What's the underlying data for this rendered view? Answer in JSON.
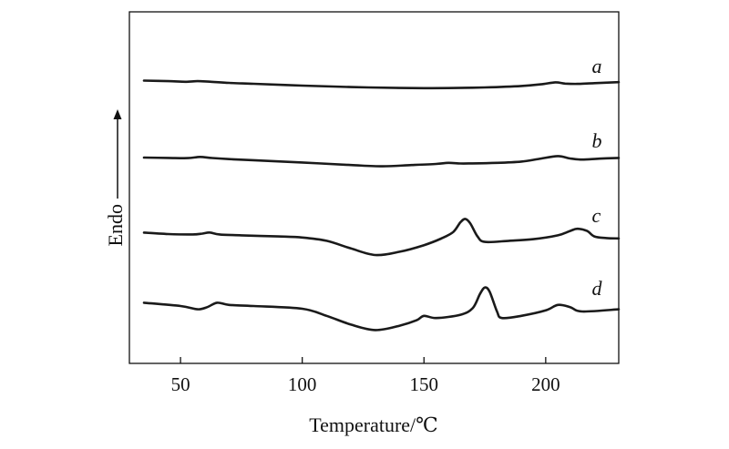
{
  "chart_data": {
    "type": "line",
    "title": "",
    "xlabel": "Temperature/℃",
    "ylabel": "Endo",
    "xlim": [
      29,
      230
    ],
    "x_ticks": [
      50,
      100,
      150,
      200
    ],
    "x_tick_labels": [
      "50",
      "100",
      "150",
      "200"
    ],
    "y_ticks_shown": false,
    "grid": false,
    "legend": "none",
    "series": [
      {
        "name": "a",
        "label_at_x": 204,
        "x": [
          35,
          45,
          52,
          57,
          62,
          70,
          80,
          100,
          120,
          140,
          150,
          160,
          175,
          190,
          198,
          204,
          208,
          213,
          220,
          230
        ],
        "y": [
          0.79,
          0.74,
          0.68,
          0.74,
          0.69,
          0.58,
          0.5,
          0.33,
          0.2,
          0.12,
          0.1,
          0.11,
          0.17,
          0.3,
          0.45,
          0.63,
          0.52,
          0.49,
          0.56,
          0.65
        ]
      },
      {
        "name": "b",
        "label_at_x": 204,
        "x": [
          35,
          45,
          53,
          58,
          63,
          70,
          80,
          100,
          120,
          133,
          145,
          155,
          160,
          165,
          170,
          180,
          190,
          197,
          205,
          210,
          215,
          222,
          230
        ],
        "y": [
          0.58,
          0.55,
          0.53,
          0.64,
          0.54,
          0.44,
          0.34,
          0.13,
          -0.1,
          -0.22,
          -0.1,
          0.0,
          0.1,
          0.04,
          0.05,
          0.1,
          0.22,
          0.45,
          0.72,
          0.5,
          0.4,
          0.48,
          0.55
        ]
      },
      {
        "name": "c",
        "label_at_x": 204,
        "x": [
          35,
          45,
          55,
          59,
          62,
          66,
          75,
          90,
          100,
          110,
          120,
          130,
          140,
          150,
          157,
          162,
          165,
          167,
          169,
          172,
          175,
          185,
          195,
          205,
          210,
          213,
          217,
          220,
          225,
          230
        ],
        "y": [
          0.55,
          0.42,
          0.38,
          0.46,
          0.56,
          0.38,
          0.3,
          0.2,
          0.1,
          -0.2,
          -0.9,
          -1.5,
          -1.2,
          -0.6,
          0.0,
          0.6,
          1.5,
          1.8,
          1.4,
          0.2,
          -0.3,
          -0.2,
          -0.05,
          0.3,
          0.7,
          0.9,
          0.7,
          0.2,
          0.05,
          0.02
        ]
      },
      {
        "name": "d",
        "label_at_x": 204,
        "x": [
          35,
          50,
          57,
          61,
          65,
          70,
          80,
          100,
          110,
          120,
          130,
          140,
          147,
          150,
          155,
          165,
          170,
          173,
          175,
          177,
          180,
          182,
          190,
          200,
          205,
          210,
          215,
          230
        ],
        "y": [
          0.8,
          0.5,
          0.2,
          0.4,
          0.8,
          0.6,
          0.5,
          0.25,
          -0.4,
          -1.2,
          -1.7,
          -1.3,
          -0.8,
          -0.4,
          -0.6,
          -0.3,
          0.3,
          1.6,
          2.2,
          1.8,
          0.0,
          -0.6,
          -0.4,
          0.1,
          0.6,
          0.4,
          0.0,
          0.2
        ]
      }
    ]
  }
}
